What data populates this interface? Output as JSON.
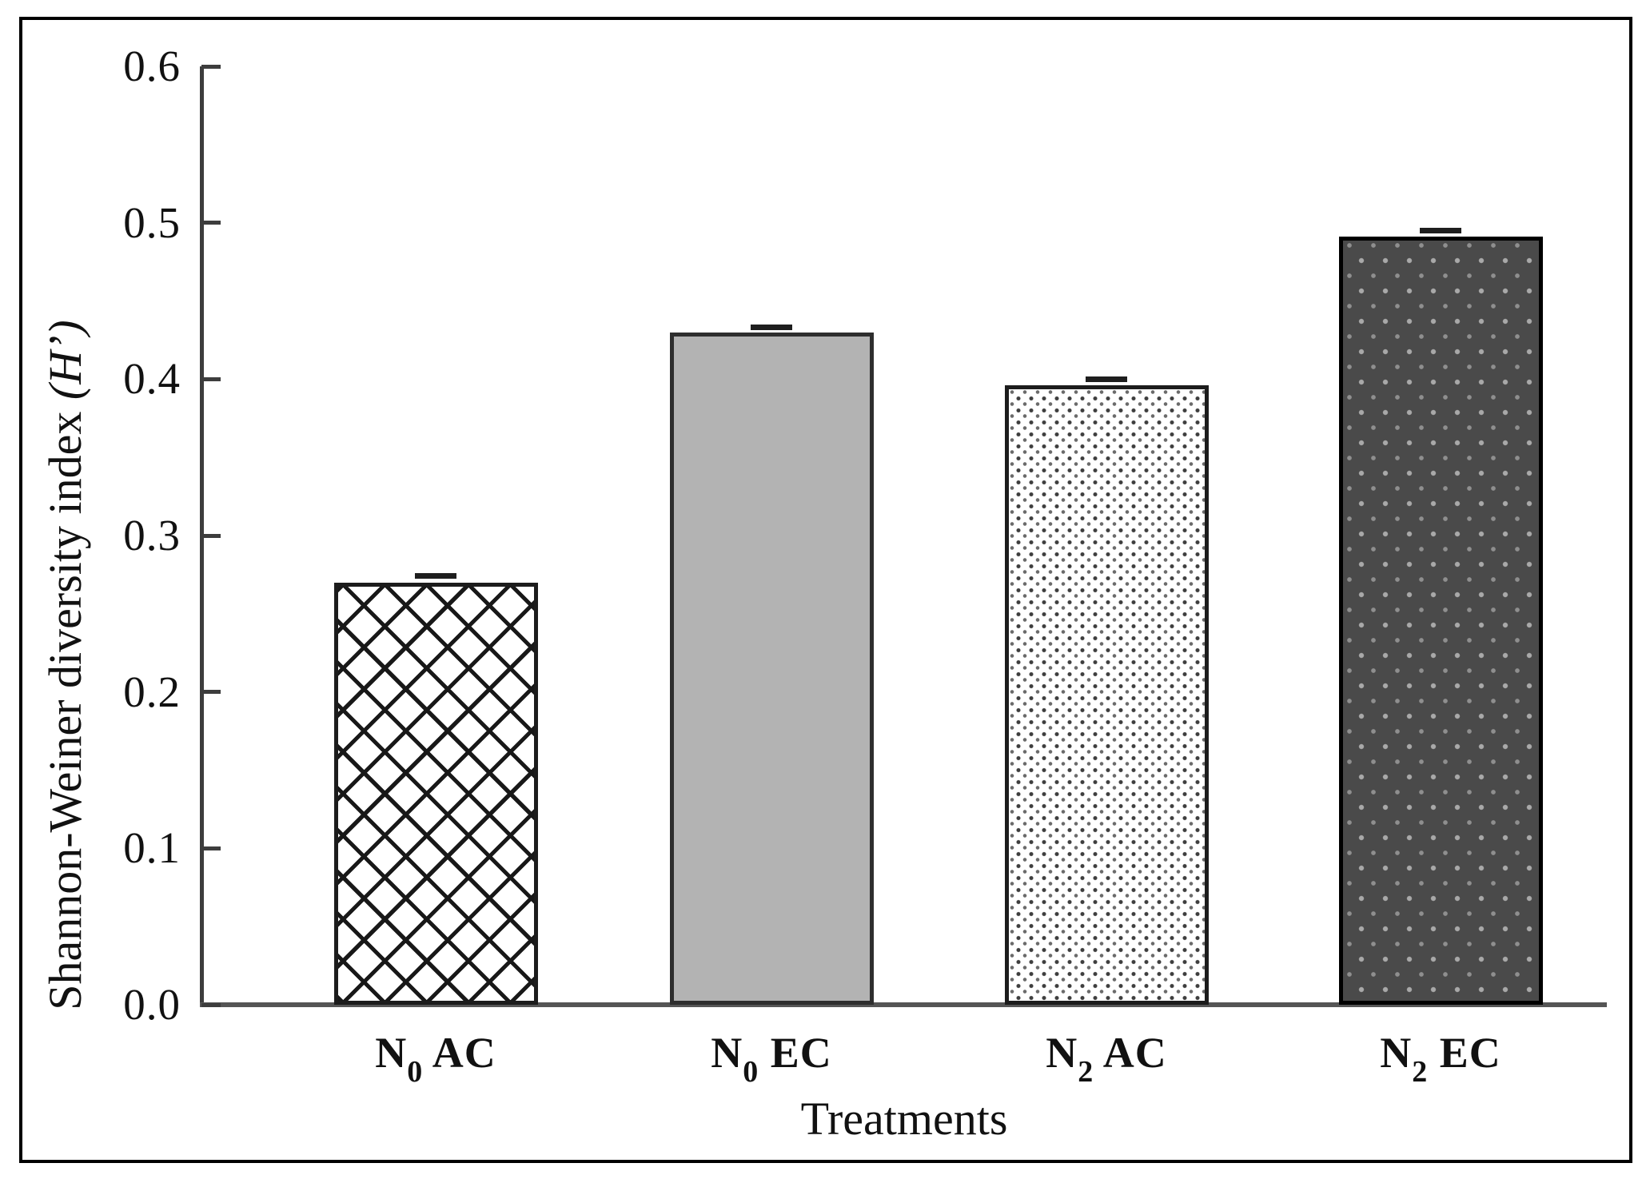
{
  "figure": {
    "xlabel": "Treatments",
    "ylabel_main": "Shannon-Weiner diversity index ",
    "ylabel_italic": "(H’)"
  },
  "chart_data": {
    "type": "bar",
    "title": "",
    "xlabel": "Treatments",
    "ylabel": "Shannon-Weiner diversity index (H’)",
    "categories": [
      "N0 AC",
      "N0 EC",
      "N2 AC",
      "N2 EC"
    ],
    "values": [
      0.27,
      0.43,
      0.396,
      0.491
    ],
    "errors": [
      0.004,
      0.003,
      0.004,
      0.004
    ],
    "ylim": [
      0,
      0.6
    ],
    "yticks": [
      0.0,
      0.1,
      0.2,
      0.3,
      0.4,
      0.5,
      0.6
    ],
    "ytick_labels": [
      "0.0",
      "0.1",
      "0.2",
      "0.3",
      "0.4",
      "0.5",
      "0.6"
    ],
    "grid": false,
    "legend": "none",
    "bar_patterns": [
      "crosshatch",
      "solid-gray",
      "dots-on-white",
      "light-dots-on-dark"
    ],
    "colors": {
      "solid_gray_fill": "#b3b3b3",
      "dark_fill": "#4a4a4a",
      "ink": "#111111",
      "axis": "#3d3d3d"
    }
  }
}
